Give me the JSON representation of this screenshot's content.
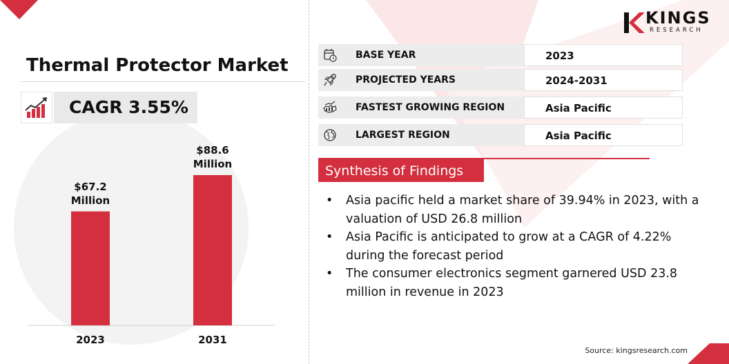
{
  "brand": {
    "name": "KINGS",
    "sub": "RESEARCH",
    "colors": {
      "accent": "#d32f3f",
      "panel": "#ececec"
    }
  },
  "title": "Thermal Protector Market",
  "cagr": {
    "text": "CAGR 3.55%",
    "icon": "growth-chart-icon"
  },
  "chart_data": {
    "type": "bar",
    "categories": [
      "2023",
      "2031"
    ],
    "values": [
      67.2,
      88.6
    ],
    "data_labels": [
      {
        "value": "$67.2",
        "unit": "Million"
      },
      {
        "value": "$88.6",
        "unit": "Million"
      }
    ],
    "bar_color": "#d32f3f",
    "grid": false
  },
  "info_rows": [
    {
      "label": "BASE YEAR",
      "value": "2023",
      "icon": "calendar-clock-icon"
    },
    {
      "label": "PROJECTED YEARS",
      "value": "2024-2031",
      "icon": "rocket-icon"
    },
    {
      "label": "FASTEST GROWING REGION",
      "value": "Asia Pacific",
      "icon": "map-growth-icon"
    },
    {
      "label": "LARGEST REGION",
      "value": "Asia Pacific",
      "icon": "globe-icon"
    }
  ],
  "synthesis": {
    "heading": "Synthesis of Findings",
    "bullets": [
      "Asia pacific held a market share of 39.94% in 2023, with a valuation of USD 26.8 million",
      "Asia Pacific is anticipated to grow at a CAGR of 4.22% during the forecast period",
      "The consumer electronics segment garnered USD 23.8 million in revenue in 2023"
    ]
  },
  "source": "Source: kingsresearch.com"
}
